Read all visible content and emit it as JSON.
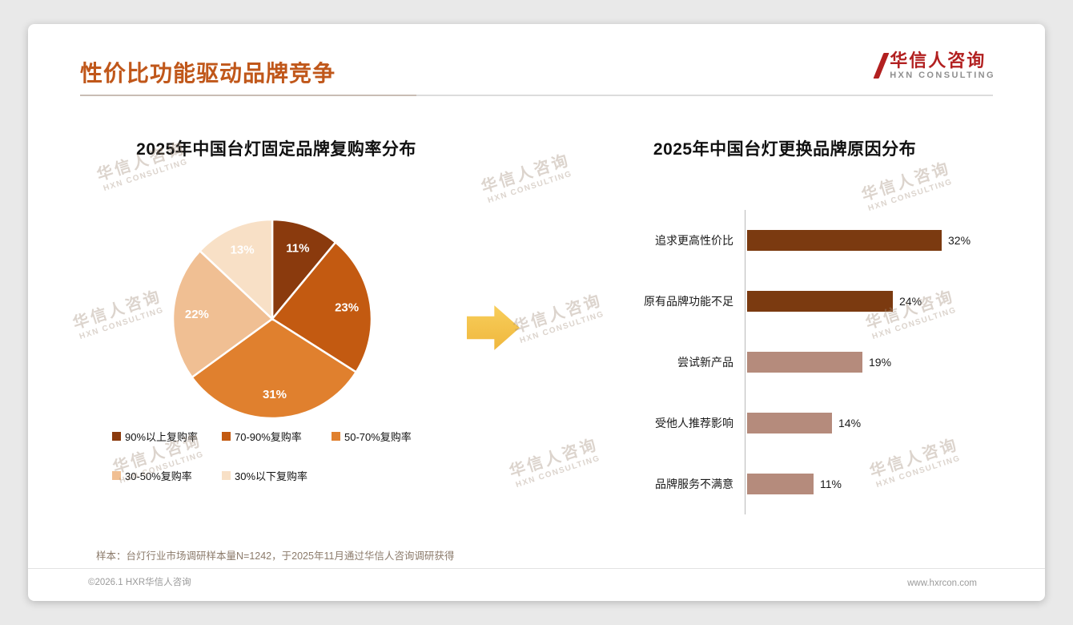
{
  "slide": {
    "title": "性价比功能驱动品牌竞争",
    "logo": {
      "name": "华信人咨询",
      "tagline": "HXN CONSULTING"
    },
    "watermark": {
      "line1": "华信人咨询",
      "line2": "HXN CONSULTING"
    },
    "footnote": "样本：台灯行业市场调研样本量N=1242，于2025年11月通过华信人咨询调研获得",
    "footer": {
      "left": "©2026.1 HXR华信人咨询",
      "right": "www.hxrcon.com"
    }
  },
  "chart_data": [
    {
      "type": "pie",
      "title": "2025年中国台灯固定品牌复购率分布",
      "labels": [
        "90%以上复购率",
        "70-90%复购率",
        "50-70%复购率",
        "30-50%复购率",
        "30%以下复购率"
      ],
      "values": [
        11,
        23,
        31,
        22,
        13
      ],
      "unit": "%",
      "colors": [
        "#8A3A0D",
        "#C35A11",
        "#E0802E",
        "#F0BF93",
        "#F8E0C6"
      ],
      "start_angle_deg": 0,
      "direction": "clockwise",
      "legend_position": "bottom"
    },
    {
      "type": "bar",
      "orientation": "horizontal",
      "title": "2025年中国台灯更换品牌原因分布",
      "categories": [
        "追求更高性价比",
        "原有品牌功能不足",
        "尝试新产品",
        "受他人推荐影响",
        "品牌服务不满意"
      ],
      "values": [
        32,
        24,
        19,
        14,
        11
      ],
      "unit": "%",
      "colors": [
        "#7B3A10",
        "#7B3A10",
        "#B58B7C",
        "#B58B7C",
        "#B58B7C"
      ],
      "xlim": [
        0,
        34
      ]
    }
  ]
}
